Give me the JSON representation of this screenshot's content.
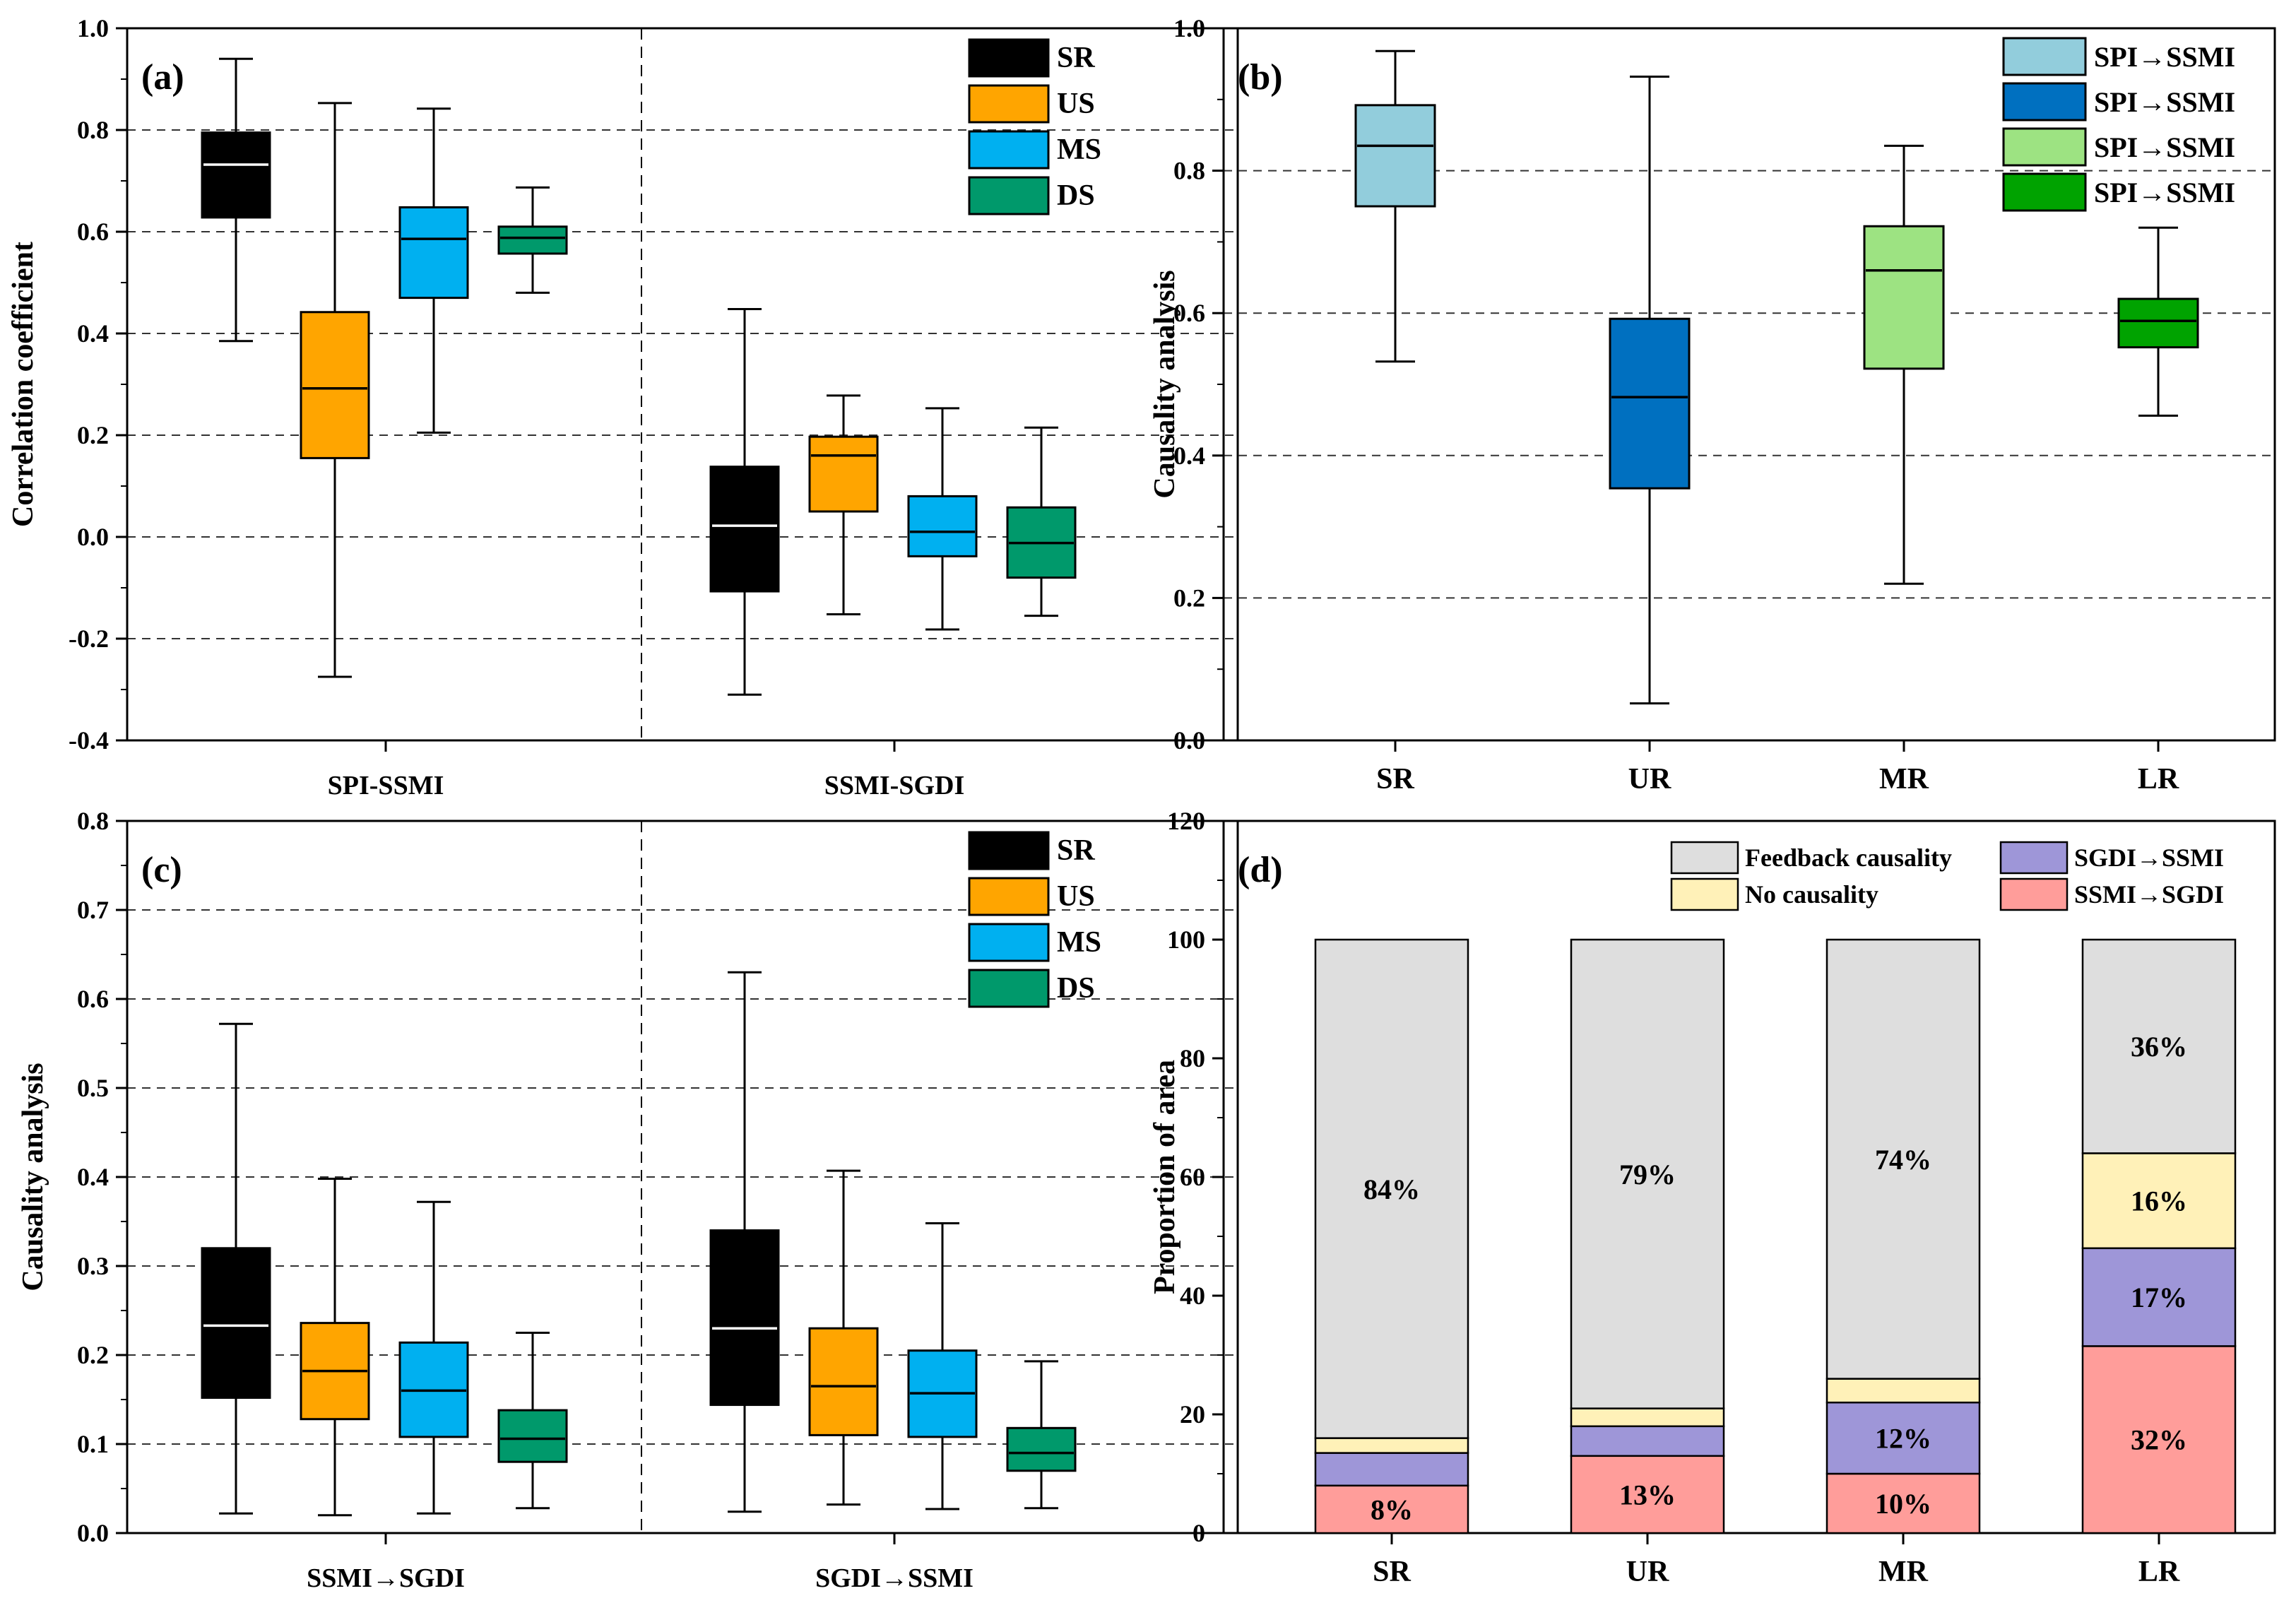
{
  "chart_data": [
    {
      "id": "a",
      "type": "box",
      "panel_label": "(a)",
      "ylabel": "Correlation coefficient",
      "ylim": [
        -0.4,
        1.0
      ],
      "yticks": [
        -0.4,
        -0.2,
        0.0,
        0.2,
        0.4,
        0.6,
        0.8,
        1.0
      ],
      "ytick_labels": [
        "-0.4",
        "-0.2",
        "0.0",
        "0.2",
        "0.4",
        "0.6",
        "0.8",
        "1.0"
      ],
      "grid_values": [
        -0.2,
        0.0,
        0.2,
        0.4,
        0.6,
        0.8
      ],
      "groups": [
        "SPI-SSMI",
        "SSMI-SGDI"
      ],
      "legend": [
        "SR",
        "US",
        "MS",
        "DS"
      ],
      "colors": [
        "#000000",
        "#ffa500",
        "#00b0f0",
        "#00996b"
      ],
      "boxes": [
        {
          "group": 0,
          "series": 0,
          "min": 0.385,
          "q1": 0.628,
          "median": 0.732,
          "q3": 0.795,
          "max": 0.94
        },
        {
          "group": 0,
          "series": 1,
          "min": -0.275,
          "q1": 0.155,
          "median": 0.292,
          "q3": 0.442,
          "max": 0.853
        },
        {
          "group": 0,
          "series": 2,
          "min": 0.205,
          "q1": 0.47,
          "median": 0.586,
          "q3": 0.648,
          "max": 0.842
        },
        {
          "group": 0,
          "series": 3,
          "min": 0.48,
          "q1": 0.557,
          "median": 0.588,
          "q3": 0.61,
          "max": 0.687
        },
        {
          "group": 1,
          "series": 0,
          "min": -0.31,
          "q1": -0.107,
          "median": 0.022,
          "q3": 0.138,
          "max": 0.448
        },
        {
          "group": 1,
          "series": 1,
          "min": -0.152,
          "q1": 0.05,
          "median": 0.16,
          "q3": 0.197,
          "max": 0.278
        },
        {
          "group": 1,
          "series": 2,
          "min": -0.182,
          "q1": -0.038,
          "median": 0.01,
          "q3": 0.08,
          "max": 0.253
        },
        {
          "group": 1,
          "series": 3,
          "min": -0.155,
          "q1": -0.08,
          "median": -0.012,
          "q3": 0.058,
          "max": 0.215
        }
      ]
    },
    {
      "id": "b",
      "type": "box",
      "panel_label": "(b)",
      "ylabel": "Causality analysis",
      "ylim": [
        0.0,
        1.0
      ],
      "yticks": [
        0.0,
        0.2,
        0.4,
        0.6,
        0.8,
        1.0
      ],
      "ytick_labels": [
        "0.0",
        "0.2",
        "0.4",
        "0.6",
        "0.8",
        "1.0"
      ],
      "grid_values": [
        0.2,
        0.4,
        0.6,
        0.8
      ],
      "categories": [
        "SR",
        "UR",
        "MR",
        "LR"
      ],
      "legend": [
        "SPI→SSMI",
        "SPI→SSMI",
        "SPI→SSMI",
        "SPI→SSMI"
      ],
      "colors": [
        "#92cddc",
        "#0070c0",
        "#9de382",
        "#00a300"
      ],
      "boxes": [
        {
          "category": 0,
          "min": 0.532,
          "q1": 0.75,
          "median": 0.835,
          "q3": 0.892,
          "max": 0.968
        },
        {
          "category": 1,
          "min": 0.052,
          "q1": 0.354,
          "median": 0.482,
          "q3": 0.592,
          "max": 0.932
        },
        {
          "category": 2,
          "min": 0.22,
          "q1": 0.522,
          "median": 0.66,
          "q3": 0.722,
          "max": 0.835
        },
        {
          "category": 3,
          "min": 0.456,
          "q1": 0.552,
          "median": 0.589,
          "q3": 0.62,
          "max": 0.72
        }
      ]
    },
    {
      "id": "c",
      "type": "box",
      "panel_label": "(c)",
      "ylabel": "Causality analysis",
      "ylim": [
        0.0,
        0.8
      ],
      "yticks": [
        0.0,
        0.1,
        0.2,
        0.3,
        0.4,
        0.5,
        0.6,
        0.7,
        0.8
      ],
      "ytick_labels": [
        "0.0",
        "0.1",
        "0.2",
        "0.3",
        "0.4",
        "0.5",
        "0.6",
        "0.7",
        "0.8"
      ],
      "grid_values": [
        0.1,
        0.2,
        0.3,
        0.4,
        0.5,
        0.6,
        0.7
      ],
      "groups": [
        "SSMI→SGDI",
        "SGDI→SSMI"
      ],
      "legend": [
        "SR",
        "US",
        "MS",
        "DS"
      ],
      "colors": [
        "#000000",
        "#ffa500",
        "#00b0f0",
        "#00996b"
      ],
      "boxes": [
        {
          "group": 0,
          "series": 0,
          "min": 0.022,
          "q1": 0.152,
          "median": 0.233,
          "q3": 0.32,
          "max": 0.572
        },
        {
          "group": 0,
          "series": 1,
          "min": 0.02,
          "q1": 0.128,
          "median": 0.182,
          "q3": 0.236,
          "max": 0.398
        },
        {
          "group": 0,
          "series": 2,
          "min": 0.022,
          "q1": 0.108,
          "median": 0.16,
          "q3": 0.214,
          "max": 0.372
        },
        {
          "group": 0,
          "series": 3,
          "min": 0.028,
          "q1": 0.08,
          "median": 0.106,
          "q3": 0.138,
          "max": 0.225
        },
        {
          "group": 1,
          "series": 0,
          "min": 0.024,
          "q1": 0.144,
          "median": 0.23,
          "q3": 0.34,
          "max": 0.63
        },
        {
          "group": 1,
          "series": 1,
          "min": 0.032,
          "q1": 0.11,
          "median": 0.165,
          "q3": 0.23,
          "max": 0.407
        },
        {
          "group": 1,
          "series": 2,
          "min": 0.027,
          "q1": 0.108,
          "median": 0.157,
          "q3": 0.205,
          "max": 0.348
        },
        {
          "group": 1,
          "series": 3,
          "min": 0.028,
          "q1": 0.07,
          "median": 0.09,
          "q3": 0.118,
          "max": 0.193
        }
      ]
    },
    {
      "id": "d",
      "type": "stacked-bar",
      "panel_label": "(d)",
      "ylabel": "Proportion of area",
      "ylim": [
        0,
        120
      ],
      "yticks": [
        0,
        20,
        40,
        60,
        80,
        100,
        120
      ],
      "ytick_labels": [
        "0",
        "20",
        "40",
        "60",
        "80",
        "100",
        "120"
      ],
      "categories": [
        "SR",
        "UR",
        "MR",
        "LR"
      ],
      "series": [
        {
          "name": "SSMI→SGDI",
          "color": "#ff9d9a",
          "values": [
            8,
            13,
            10,
            31.5
          ],
          "labels": [
            "8%",
            "13%",
            "10%",
            "32%"
          ]
        },
        {
          "name": "SGDI→SSMI",
          "color": "#9e96d8",
          "values": [
            5.5,
            5,
            12,
            16.5
          ],
          "labels": [
            "",
            "",
            "12%",
            "17%"
          ]
        },
        {
          "name": "No causality",
          "color": "#fff1b8",
          "values": [
            2.5,
            3,
            4,
            16
          ],
          "labels": [
            "",
            "",
            "",
            "16%"
          ]
        },
        {
          "name": "Feedback causality",
          "color": "#dedede",
          "values": [
            84,
            79,
            74,
            36
          ],
          "labels": [
            "84%",
            "79%",
            "74%",
            "36%"
          ]
        }
      ],
      "legend_order": [
        "Feedback causality",
        "SGDI→SSMI",
        "No causality",
        "SSMI→SGDI"
      ]
    }
  ]
}
